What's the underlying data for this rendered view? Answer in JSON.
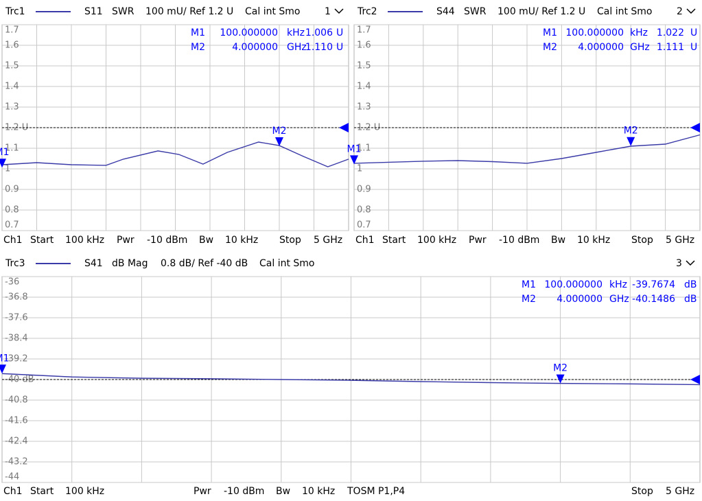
{
  "chart_data": [
    {
      "type": "line",
      "parameter": "S11",
      "format": "SWR",
      "scale": "100 mU/ Ref 1.2 U",
      "cal": "Cal int Smo",
      "channel_number": "1",
      "x": [
        0.0001,
        0.5,
        1,
        1.5,
        1.75,
        2.25,
        2.55,
        2.9,
        3.25,
        3.7,
        4.0,
        4.35,
        4.7,
        5
      ],
      "series": [
        {
          "name": "Trc1",
          "color": "#3a3aa8",
          "values": [
            1.02,
            1.03,
            1.02,
            1.017,
            1.047,
            1.087,
            1.07,
            1.023,
            1.08,
            1.13,
            1.113,
            1.06,
            1.01,
            1.047
          ]
        }
      ],
      "xlim": [
        0.0001,
        5
      ],
      "ylim": [
        0.7,
        1.7
      ],
      "yticks": [
        1.7,
        1.6,
        1.5,
        1.4,
        1.3,
        {
          "value": 1.2,
          "label": "1.2 U"
        },
        1.1,
        1,
        0.9,
        0.8,
        0.7
      ],
      "ref": 1.2,
      "grid": true,
      "marker_color": "#0000ff",
      "markers": [
        {
          "name": "M1",
          "x": 0.0001,
          "frequency": "100.000000",
          "frequency_unit": "kHz",
          "value": 1.006,
          "unit": "U"
        },
        {
          "name": "M2",
          "x": 4.0,
          "frequency": "4.000000",
          "frequency_unit": "GHz",
          "value": 1.11,
          "value_label": "1.110",
          "unit": "U"
        }
      ],
      "footer": [
        "Ch1",
        "Start",
        "100 kHz",
        "Pwr",
        "-10 dBm",
        "Bw",
        "10 kHz",
        "Stop",
        "5 GHz"
      ]
    },
    {
      "type": "line",
      "parameter": "S44",
      "format": "SWR",
      "scale": "100 mU/ Ref 1.2 U",
      "cal": "Cal int Smo",
      "channel_number": "2",
      "x": [
        0.0001,
        0.5,
        1,
        1.5,
        2,
        2.5,
        3,
        3.5,
        4,
        4.5,
        5
      ],
      "series": [
        {
          "name": "Trc2",
          "color": "#3a3aa8",
          "values": [
            1.027,
            1.032,
            1.037,
            1.04,
            1.035,
            1.027,
            1.05,
            1.08,
            1.11,
            1.12,
            1.165
          ]
        }
      ],
      "xlim": [
        0.0001,
        5
      ],
      "ylim": [
        0.7,
        1.7
      ],
      "yticks": [
        1.7,
        1.6,
        1.5,
        1.4,
        1.3,
        {
          "value": 1.2,
          "label": "1.2 U"
        },
        1.1,
        1,
        0.9,
        0.8,
        0.7
      ],
      "ref": 1.2,
      "grid": true,
      "marker_color": "#0000ff",
      "markers": [
        {
          "name": "M1",
          "x": 0.0001,
          "frequency": "100.000000",
          "frequency_unit": "kHz",
          "value": 1.022,
          "unit": "U"
        },
        {
          "name": "M2",
          "x": 4.0,
          "frequency": "4.000000",
          "frequency_unit": "GHz",
          "value": 1.111,
          "unit": "U"
        }
      ],
      "footer": [
        "Ch1",
        "Start",
        "100 kHz",
        "Pwr",
        "-10 dBm",
        "Bw",
        "10 kHz",
        "Stop",
        "5 GHz"
      ]
    },
    {
      "type": "line",
      "parameter": "S41",
      "format": "dB Mag",
      "scale": "0.8 dB/ Ref -40 dB",
      "cal": "Cal int Smo",
      "channel_number": "3",
      "x": [
        0.0001,
        0.5,
        1,
        1.5,
        2,
        2.5,
        3,
        3.5,
        4,
        4.5,
        5
      ],
      "series": [
        {
          "name": "Trc3",
          "color": "#3a3aa8",
          "values": [
            -39.77,
            -39.9,
            -39.95,
            -39.97,
            -40.0,
            -40.03,
            -40.08,
            -40.12,
            -40.15,
            -40.17,
            -40.2
          ]
        }
      ],
      "xlim": [
        0.0001,
        5
      ],
      "ylim": [
        -44,
        -36
      ],
      "yticks": [
        -36,
        -36.8,
        -37.6,
        -38.4,
        -39.2,
        {
          "value": -40,
          "label": "-40 dB"
        },
        -40.8,
        -41.6,
        -42.4,
        -43.2,
        -44
      ],
      "ref": -40,
      "grid": true,
      "marker_color": "#0000ff",
      "markers": [
        {
          "name": "M1",
          "x": 0.0001,
          "frequency": "100.000000",
          "frequency_unit": "kHz",
          "value": -39.7674,
          "unit": "dB"
        },
        {
          "name": "M2",
          "x": 4.0,
          "frequency": "4.000000",
          "frequency_unit": "GHz",
          "value": -40.1486,
          "unit": "dB"
        }
      ],
      "footer": [
        "Ch1",
        "Start",
        "100 kHz",
        "Pwr",
        "-10 dBm",
        "Bw",
        "10 kHz",
        "TOSM P1,P4",
        "Stop",
        "5 GHz"
      ]
    }
  ]
}
